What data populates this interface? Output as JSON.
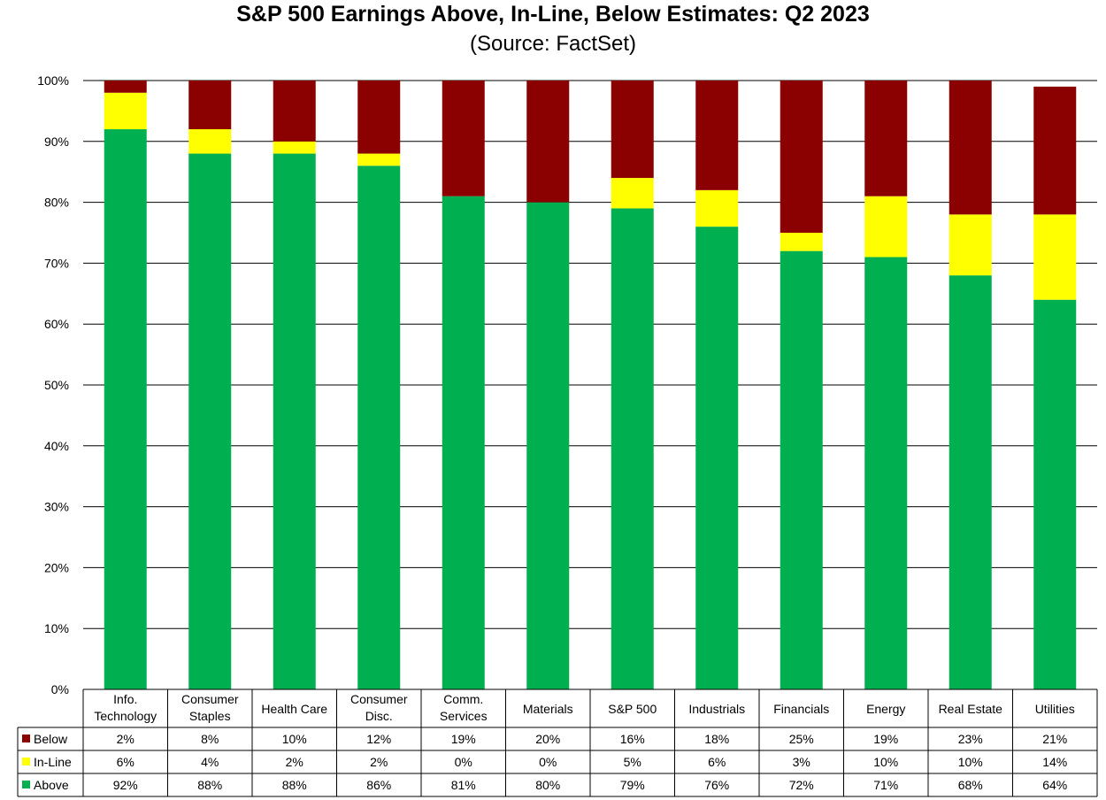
{
  "chart_data": {
    "type": "bar",
    "stacked": true,
    "title": "S&P 500 Earnings Above, In-Line, Below Estimates: Q2 2023",
    "subtitle": "(Source: FactSet)",
    "categories": [
      [
        "Info.",
        "Technology"
      ],
      [
        "Consumer",
        "Staples"
      ],
      [
        "Health Care"
      ],
      [
        "Consumer",
        "Disc."
      ],
      [
        "Comm.",
        "Services"
      ],
      [
        "Materials"
      ],
      [
        "S&P 500"
      ],
      [
        "Industrials"
      ],
      [
        "Financials"
      ],
      [
        "Energy"
      ],
      [
        "Real Estate"
      ],
      [
        "Utilities"
      ]
    ],
    "series": [
      {
        "name": "Above",
        "color": "#00B050",
        "values": [
          92,
          88,
          88,
          86,
          81,
          80,
          79,
          76,
          72,
          71,
          68,
          64
        ],
        "labels": [
          "92%",
          "88%",
          "88%",
          "86%",
          "81%",
          "80%",
          "79%",
          "76%",
          "72%",
          "71%",
          "68%",
          "64%"
        ]
      },
      {
        "name": "In-Line",
        "color": "#FFFF00",
        "values": [
          6,
          4,
          2,
          2,
          0,
          0,
          5,
          6,
          3,
          10,
          10,
          14
        ],
        "labels": [
          "6%",
          "4%",
          "2%",
          "2%",
          "0%",
          "0%",
          "5%",
          "6%",
          "3%",
          "10%",
          "10%",
          "14%"
        ]
      },
      {
        "name": "Below",
        "color": "#8B0000",
        "values": [
          2,
          8,
          10,
          12,
          19,
          20,
          16,
          18,
          25,
          19,
          23,
          21
        ],
        "labels": [
          "2%",
          "8%",
          "10%",
          "12%",
          "19%",
          "20%",
          "16%",
          "18%",
          "25%",
          "19%",
          "23%",
          "21%"
        ]
      }
    ],
    "table_row_order": [
      "Below",
      "In-Line",
      "Above"
    ],
    "ylim": [
      0,
      100
    ],
    "yticks": [
      "0%",
      "10%",
      "20%",
      "30%",
      "40%",
      "50%",
      "60%",
      "70%",
      "80%",
      "90%",
      "100%"
    ],
    "grid": true,
    "legend": "data-table-left"
  }
}
